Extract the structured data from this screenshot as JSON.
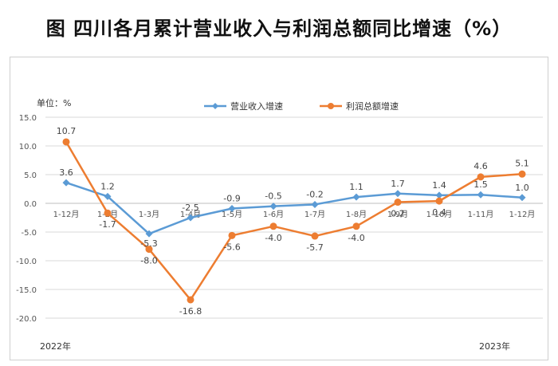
{
  "title": "图  四川各月累计营业收入与利润总额同比增速（%）",
  "unit_label": "单位：%",
  "year_start": "2022年",
  "year_end": "2023年",
  "colors": {
    "revenue": "#5b9bd5",
    "profit": "#ed7d31",
    "grid": "#d9d9d9"
  },
  "chart_data": {
    "type": "line",
    "title": "图  四川各月累计营业收入与利润总额同比增速（%）",
    "xlabel": "",
    "ylabel": "单位：%",
    "ylim": [
      -20,
      15
    ],
    "yticks": [
      "15.0",
      "10.0",
      "5.0",
      "0.0",
      "-5.0",
      "-10.0",
      "-15.0",
      "-20.0"
    ],
    "grid": true,
    "legend_position": "top-center",
    "categories": [
      "1-12月",
      "1-2月",
      "1-3月",
      "1-4月",
      "1-5月",
      "1-6月",
      "1-7月",
      "1-8月",
      "1-9月",
      "1-10月",
      "1-11月",
      "1-12月"
    ],
    "series": [
      {
        "name": "营业收入增速",
        "values": [
          3.6,
          1.2,
          -5.3,
          -2.5,
          -0.9,
          -0.5,
          -0.2,
          1.1,
          1.7,
          1.4,
          1.5,
          1.0
        ],
        "labels": [
          "3.6",
          "1.2",
          "-5.3",
          "-2.5",
          "-0.9",
          "-0.5",
          "-0.2",
          "1.1",
          "1.7",
          "1.4",
          "1.5",
          "1.0"
        ]
      },
      {
        "name": "利润总额增速",
        "values": [
          10.7,
          -1.7,
          -8.0,
          -16.8,
          -5.6,
          -4.0,
          -5.7,
          -4.0,
          0.2,
          0.4,
          4.6,
          5.1
        ],
        "labels": [
          "10.7",
          "-1.7",
          "-8.0",
          "-16.8",
          "-5.6",
          "-4.0",
          "-5.7",
          "-4.0",
          "0.2",
          "0.4",
          "4.6",
          "5.1"
        ]
      }
    ]
  }
}
